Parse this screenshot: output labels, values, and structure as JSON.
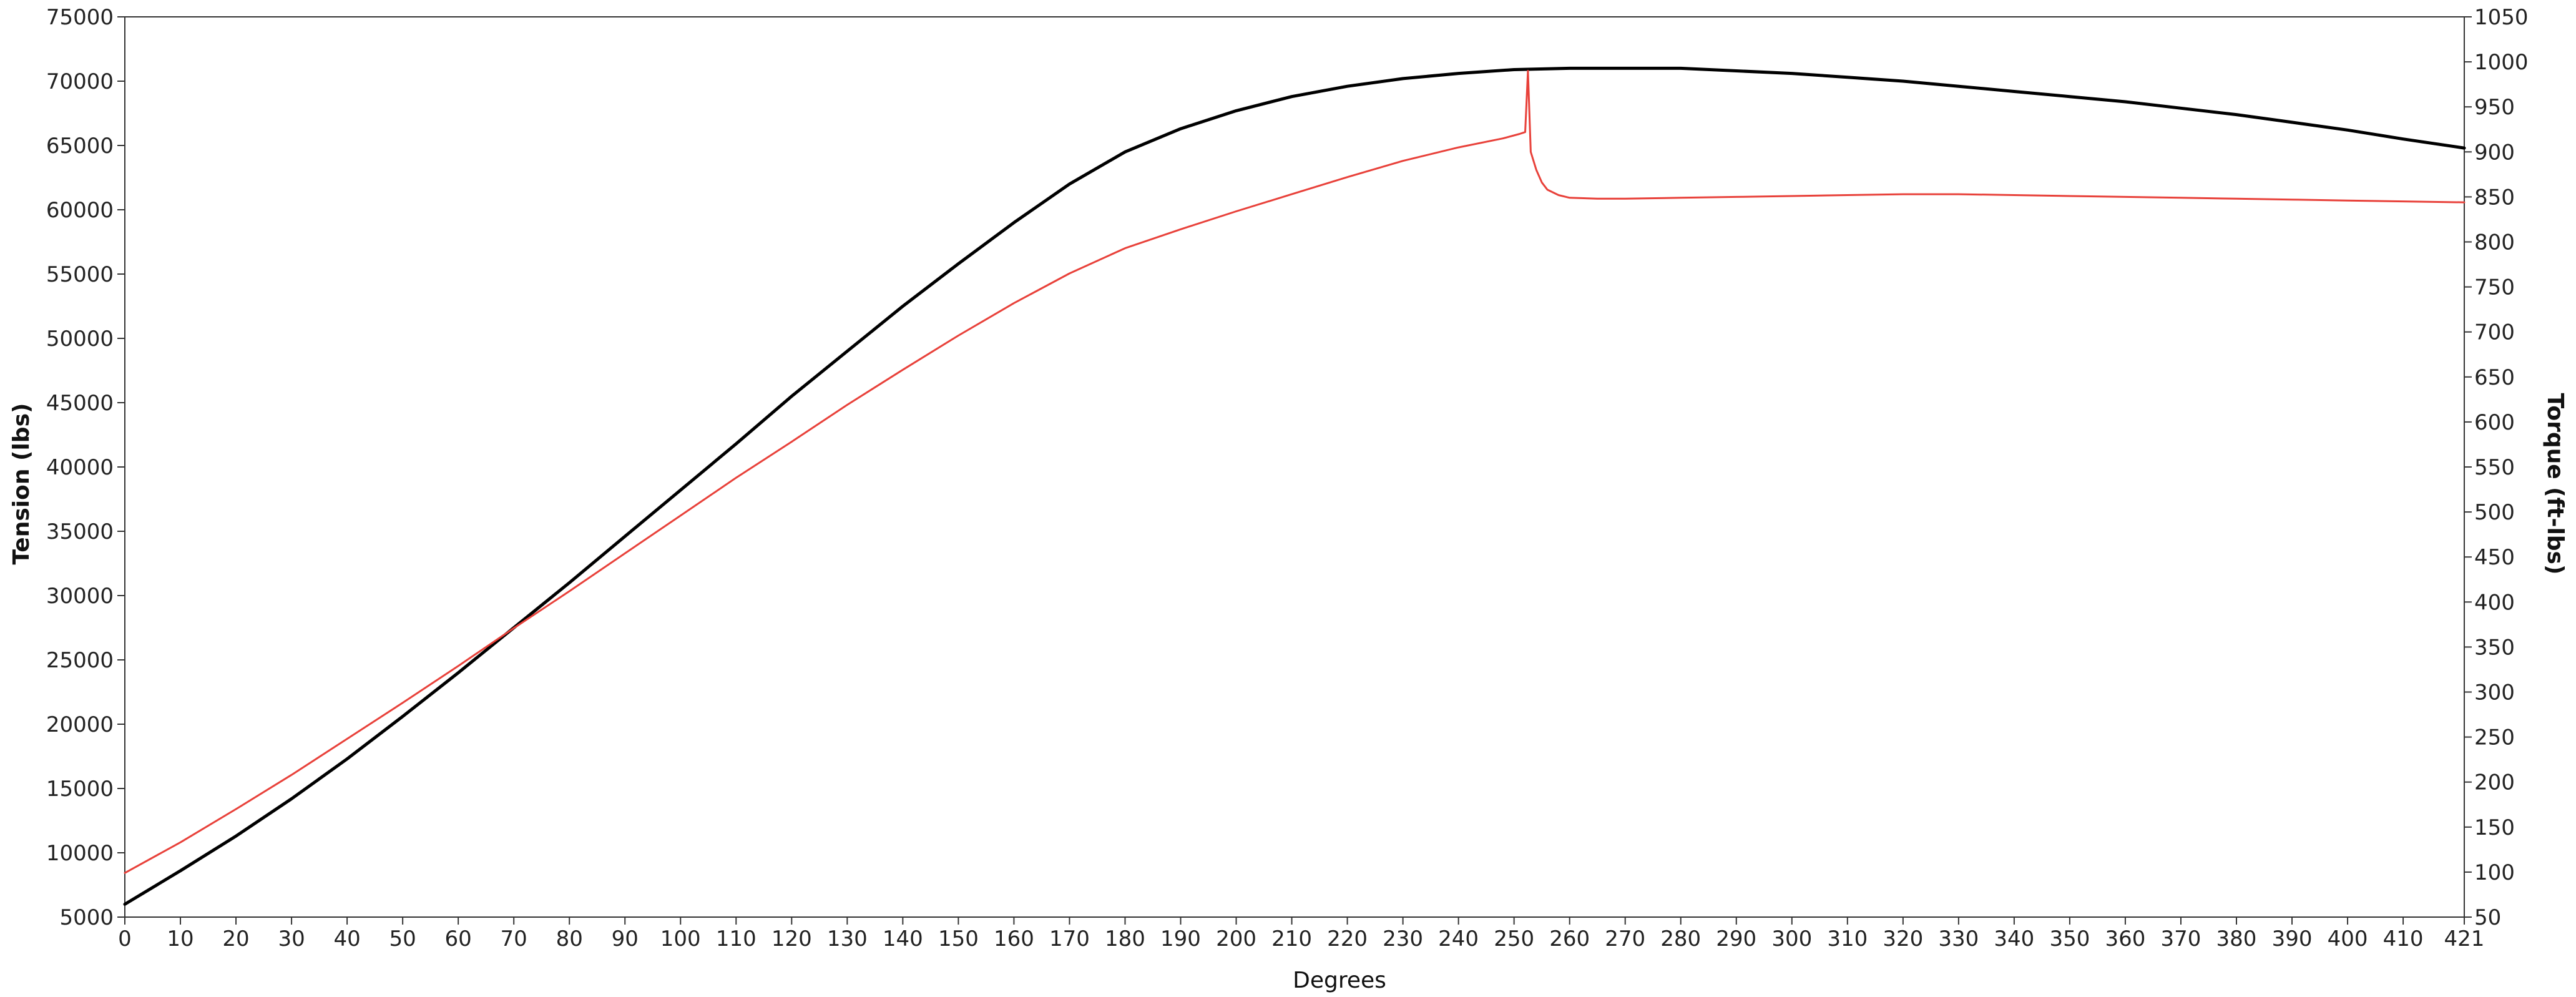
{
  "chart_data": {
    "type": "line",
    "title": "",
    "xlabel": "Degrees",
    "ylabel_left": "Tension (lbs)",
    "ylabel_right": "Torque (ft-lbs)",
    "xlim": [
      0,
      421
    ],
    "ylim_left": [
      5000,
      75000
    ],
    "ylim_right": [
      50,
      1050
    ],
    "x_ticks": [
      0,
      10,
      20,
      30,
      40,
      50,
      60,
      70,
      80,
      90,
      100,
      110,
      120,
      130,
      140,
      150,
      160,
      170,
      180,
      190,
      200,
      210,
      220,
      230,
      240,
      250,
      260,
      270,
      280,
      290,
      300,
      310,
      320,
      330,
      340,
      350,
      360,
      370,
      380,
      390,
      400,
      410,
      421
    ],
    "y_left_ticks": [
      5000,
      10000,
      15000,
      20000,
      25000,
      30000,
      35000,
      40000,
      45000,
      50000,
      55000,
      60000,
      65000,
      70000,
      75000
    ],
    "y_right_ticks": [
      50,
      100,
      150,
      200,
      250,
      300,
      350,
      400,
      450,
      500,
      550,
      600,
      650,
      700,
      750,
      800,
      850,
      900,
      950,
      1000,
      1050
    ],
    "grid": false,
    "series": [
      {
        "axis": "left",
        "color": "#000000",
        "x": [
          0,
          10,
          20,
          30,
          40,
          50,
          60,
          70,
          80,
          90,
          100,
          110,
          120,
          130,
          140,
          150,
          160,
          170,
          180,
          190,
          200,
          210,
          220,
          230,
          240,
          250,
          260,
          270,
          280,
          290,
          300,
          310,
          320,
          330,
          340,
          350,
          360,
          370,
          380,
          390,
          400,
          410,
          421
        ],
        "y": [
          6000,
          8600,
          11300,
          14200,
          17300,
          20600,
          24000,
          27500,
          31000,
          34600,
          38200,
          41800,
          45500,
          49000,
          52500,
          55800,
          59000,
          62000,
          64500,
          66300,
          67700,
          68800,
          69600,
          70200,
          70600,
          70900,
          71000,
          71000,
          71000,
          70800,
          70600,
          70300,
          70000,
          69600,
          69200,
          68800,
          68400,
          67900,
          67400,
          66800,
          66200,
          65500,
          64800
        ]
      },
      {
        "axis": "right",
        "color": "#e8413a",
        "x": [
          0,
          10,
          20,
          30,
          40,
          50,
          60,
          70,
          80,
          90,
          100,
          110,
          120,
          130,
          140,
          150,
          160,
          170,
          180,
          190,
          200,
          210,
          220,
          230,
          240,
          248,
          251,
          252,
          252.5,
          253,
          254,
          255,
          256,
          258,
          260,
          265,
          270,
          280,
          290,
          300,
          310,
          320,
          330,
          340,
          350,
          360,
          370,
          380,
          390,
          400,
          410,
          421
        ],
        "y": [
          99,
          133,
          170,
          208,
          248,
          288,
          329,
          371,
          412,
          454,
          496,
          538,
          578,
          619,
          658,
          696,
          732,
          765,
          793,
          814,
          834,
          853,
          872,
          890,
          905,
          915,
          920,
          922,
          990,
          900,
          880,
          866,
          858,
          852,
          849,
          848,
          848,
          849,
          850,
          851,
          852,
          853,
          853,
          852,
          851,
          850,
          849,
          848,
          847,
          846,
          845,
          844
        ]
      }
    ]
  }
}
